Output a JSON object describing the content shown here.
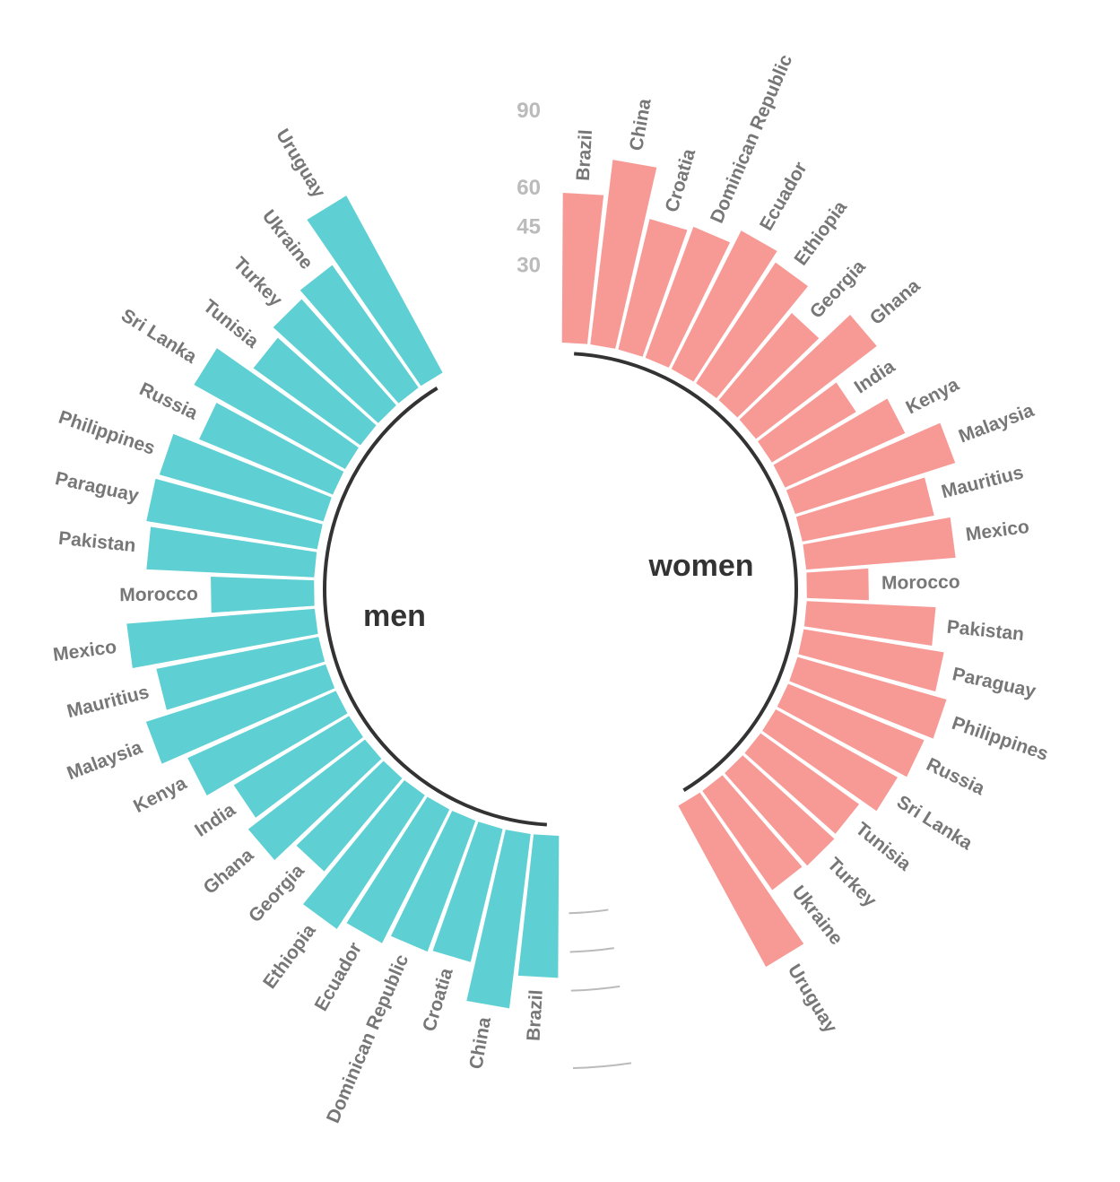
{
  "chart_data": {
    "type": "bar",
    "subtype": "circular-bar",
    "title": "",
    "value_scale_ticks": [
      30,
      45,
      60,
      90
    ],
    "colors": {
      "men": "#5ecfd2",
      "women": "#f79a96"
    },
    "groups": [
      {
        "name": "men",
        "label": "men",
        "categories": [
          "Brazil",
          "China",
          "Croatia",
          "Dominican Republic",
          "Ecuador",
          "Ethiopia",
          "Georgia",
          "Ghana",
          "India",
          "Kenya",
          "Malaysia",
          "Mauritius",
          "Mexico",
          "Morocco",
          "Pakistan",
          "Paraguay",
          "Philippines",
          "Russia",
          "Sri Lanka",
          "Tunisia",
          "Turkey",
          "Ukraine",
          "Uruguay"
        ],
        "values": [
          55,
          68,
          53,
          54,
          58,
          62,
          47,
          57,
          52,
          63,
          73,
          64,
          73,
          40,
          65,
          67,
          66,
          56,
          67,
          51,
          55,
          58,
          78
        ]
      },
      {
        "name": "women",
        "label": "women",
        "categories": [
          "Brazil",
          "China",
          "Croatia",
          "Dominican Republic",
          "Ecuador",
          "Ethiopia",
          "Georgia",
          "Ghana",
          "India",
          "Kenya",
          "Malaysia",
          "Mauritius",
          "Mexico",
          "Morocco",
          "Pakistan",
          "Paraguay",
          "Philippines",
          "Russia",
          "Sri Lanka",
          "Tunisia",
          "Turkey",
          "Ukraine",
          "Uruguay"
        ],
        "values": [
          58,
          72,
          52,
          54,
          60,
          56,
          44,
          59,
          38,
          51,
          65,
          52,
          58,
          24,
          50,
          55,
          60,
          57,
          54,
          47,
          48,
          47,
          71
        ]
      }
    ]
  }
}
